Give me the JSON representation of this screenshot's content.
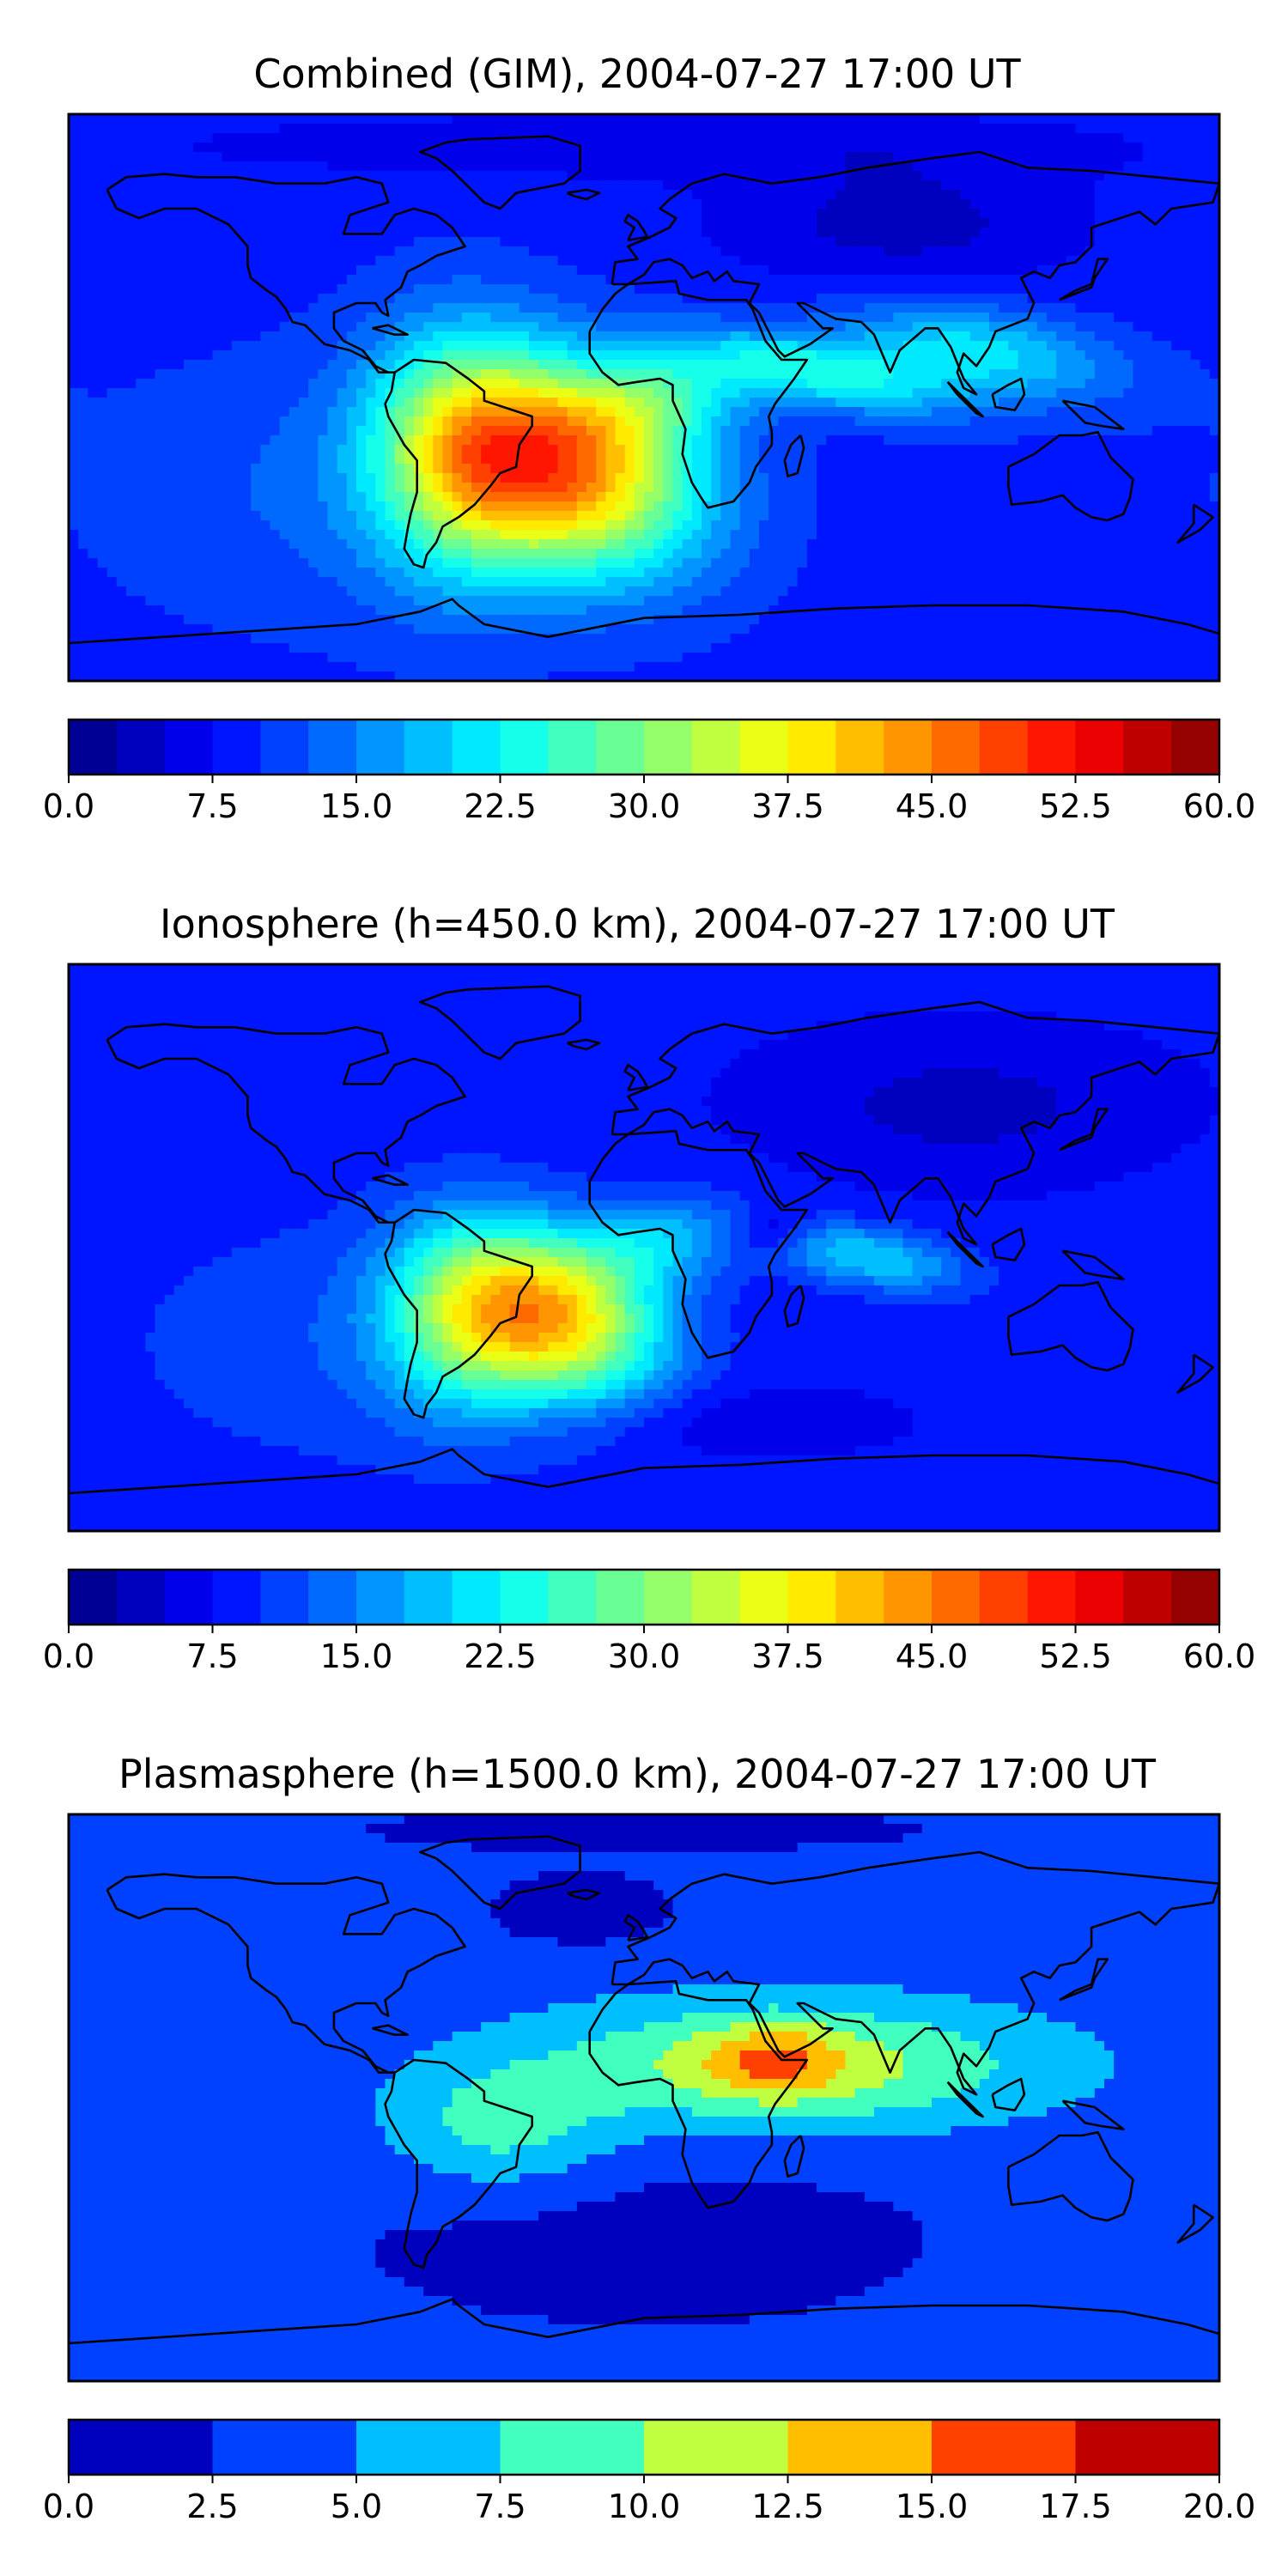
{
  "figure": {
    "panels": [
      {
        "title": "Combined (GIM), 2004-07-27 17:00 UT",
        "colorbar": {
          "min": 0,
          "max": 60,
          "levels": 24,
          "ticks": [
            "0.0",
            "7.5",
            "15.0",
            "22.5",
            "30.0",
            "37.5",
            "45.0",
            "52.5",
            "60.0"
          ]
        },
        "field": {
          "background": 9,
          "blobs": [
            {
              "lon": -25,
              "lat": -22,
              "sx": 30,
              "sy": 22,
              "amp": 34,
              "ang": -20
            },
            {
              "lon": -58,
              "lat": -18,
              "sx": 20,
              "sy": 28,
              "amp": 16,
              "ang": 0
            },
            {
              "lon": 5,
              "lat": 0,
              "sx": 20,
              "sy": 10,
              "amp": 10,
              "ang": 10
            },
            {
              "lon": 55,
              "lat": 8,
              "sx": 30,
              "sy": 8,
              "amp": 14,
              "ang": -10
            },
            {
              "lon": 105,
              "lat": 15,
              "sx": 30,
              "sy": 10,
              "amp": 12,
              "ang": -10
            },
            {
              "lon": -90,
              "lat": -30,
              "sx": 55,
              "sy": 30,
              "amp": 4,
              "ang": 0
            },
            {
              "lon": 80,
              "lat": 55,
              "sx": 40,
              "sy": 15,
              "amp": -5,
              "ang": 0
            },
            {
              "lon": 0,
              "lat": 80,
              "sx": 120,
              "sy": 8,
              "amp": -3,
              "ang": 0
            }
          ]
        }
      },
      {
        "title": "Ionosphere  (h=450.0 km), 2004-07-27 17:00 UT",
        "colorbar": {
          "min": 0,
          "max": 60,
          "levels": 24,
          "ticks": [
            "0.0",
            "7.5",
            "15.0",
            "22.5",
            "30.0",
            "37.5",
            "45.0",
            "52.5",
            "60.0"
          ]
        },
        "field": {
          "background": 8,
          "blobs": [
            {
              "lon": -28,
              "lat": -22,
              "sx": 24,
              "sy": 18,
              "amp": 30,
              "ang": -20
            },
            {
              "lon": -58,
              "lat": -22,
              "sx": 18,
              "sy": 22,
              "amp": 14,
              "ang": 0
            },
            {
              "lon": 5,
              "lat": 2,
              "sx": 18,
              "sy": 10,
              "amp": 9,
              "ang": 10
            },
            {
              "lon": 70,
              "lat": -3,
              "sx": 22,
              "sy": 7,
              "amp": 12,
              "ang": -10
            },
            {
              "lon": 40,
              "lat": 5,
              "sx": 8,
              "sy": 5,
              "amp": -6,
              "ang": 0
            },
            {
              "lon": -90,
              "lat": -30,
              "sx": 55,
              "sy": 30,
              "amp": 4,
              "ang": 0
            },
            {
              "lon": 100,
              "lat": 45,
              "sx": 40,
              "sy": 15,
              "amp": -4,
              "ang": 0
            },
            {
              "lon": 10,
              "lat": -55,
              "sx": 40,
              "sy": 8,
              "amp": -3,
              "ang": 0
            }
          ]
        }
      },
      {
        "title": "Plasmasphere (h=1500.0 km), 2004-07-27 17:00 UT",
        "colorbar": {
          "min": 0,
          "max": 20,
          "levels": 8,
          "ticks": [
            "0.0",
            "2.5",
            "5.0",
            "7.5",
            "10.0",
            "12.5",
            "15.0",
            "17.5",
            "20.0"
          ]
        },
        "field": {
          "background": 3.6,
          "blobs": [
            {
              "lon": 45,
              "lat": 10,
              "sx": 55,
              "sy": 14,
              "amp": 8,
              "ang": 0
            },
            {
              "lon": 40,
              "lat": 12,
              "sx": 15,
              "sy": 8,
              "amp": 5,
              "ang": 0
            },
            {
              "lon": -45,
              "lat": -10,
              "sx": 25,
              "sy": 14,
              "amp": 5,
              "ang": 0
            },
            {
              "lon": 0,
              "lat": -45,
              "sx": 80,
              "sy": 25,
              "amp": -2,
              "ang": 0
            },
            {
              "lon": -20,
              "lat": 60,
              "sx": 20,
              "sy": 8,
              "amp": -3,
              "ang": 0
            },
            {
              "lon": 0,
              "lat": 85,
              "sx": 80,
              "sy": 6,
              "amp": -2,
              "ang": 0
            }
          ]
        }
      }
    ],
    "colormap": "jet",
    "map_extent": {
      "lon": [
        -180,
        180
      ],
      "lat": [
        -90,
        90
      ]
    }
  }
}
